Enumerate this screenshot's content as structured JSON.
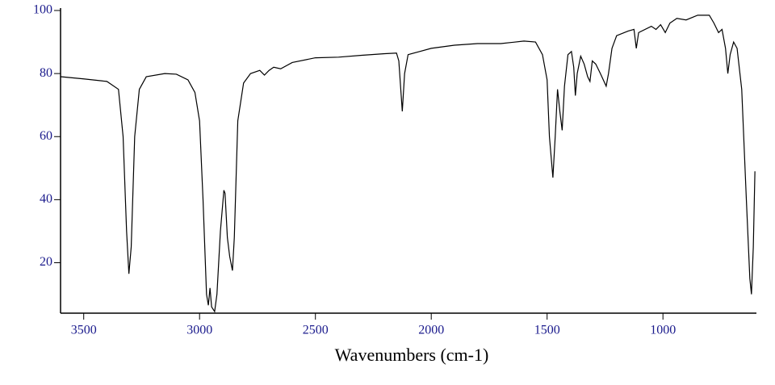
{
  "chart_data": {
    "type": "line",
    "xlabel": "Wavenumbers (cm-1)",
    "xlim": [
      3600,
      600
    ],
    "ylim": [
      4,
      100
    ],
    "xticks": [
      3500,
      3000,
      2500,
      2000,
      1500,
      1000
    ],
    "yticks": [
      20,
      40,
      60,
      80,
      100
    ],
    "color": "#000000",
    "x": [
      3600,
      3500,
      3400,
      3350,
      3330,
      3315,
      3305,
      3295,
      3280,
      3260,
      3230,
      3150,
      3100,
      3050,
      3020,
      3000,
      2985,
      2970,
      2962,
      2955,
      2948,
      2935,
      2925,
      2910,
      2895,
      2890,
      2880,
      2870,
      2858,
      2850,
      2835,
      2810,
      2780,
      2740,
      2720,
      2700,
      2680,
      2650,
      2600,
      2500,
      2400,
      2300,
      2200,
      2150,
      2140,
      2125,
      2115,
      2100,
      2050,
      2000,
      1900,
      1800,
      1700,
      1600,
      1550,
      1520,
      1500,
      1490,
      1475,
      1465,
      1455,
      1445,
      1435,
      1425,
      1410,
      1395,
      1385,
      1378,
      1370,
      1355,
      1340,
      1325,
      1315,
      1305,
      1290,
      1270,
      1245,
      1235,
      1220,
      1200,
      1150,
      1125,
      1115,
      1105,
      1050,
      1030,
      1010,
      990,
      970,
      940,
      900,
      850,
      800,
      780,
      760,
      745,
      730,
      720,
      710,
      695,
      680,
      660,
      640,
      625,
      618,
      610,
      603
    ],
    "values": [
      79,
      78.3,
      77.5,
      75,
      60,
      30,
      16.5,
      25,
      60,
      75,
      79,
      80,
      79.8,
      78,
      74,
      65,
      40,
      10,
      6.5,
      12,
      6,
      4.5,
      10,
      30,
      43,
      42,
      28,
      22,
      17.5,
      28,
      65,
      77,
      80,
      81,
      79.5,
      81,
      82,
      81.5,
      83.5,
      85,
      85.2,
      85.8,
      86.3,
      86.5,
      84,
      68,
      80,
      86,
      87,
      88,
      89,
      89.5,
      89.5,
      90.3,
      90,
      86,
      78,
      60,
      47,
      60,
      75,
      68,
      62,
      76,
      86,
      87,
      82,
      73,
      80,
      85.5,
      83,
      79,
      77.5,
      84,
      83,
      80,
      76,
      80,
      88,
      92,
      93.5,
      94,
      88,
      93,
      95,
      94,
      95.5,
      93,
      96,
      97.5,
      97,
      98.5,
      98.5,
      96,
      93,
      94,
      88,
      80,
      86,
      90,
      88,
      75,
      40,
      15,
      10,
      25,
      49
    ]
  }
}
